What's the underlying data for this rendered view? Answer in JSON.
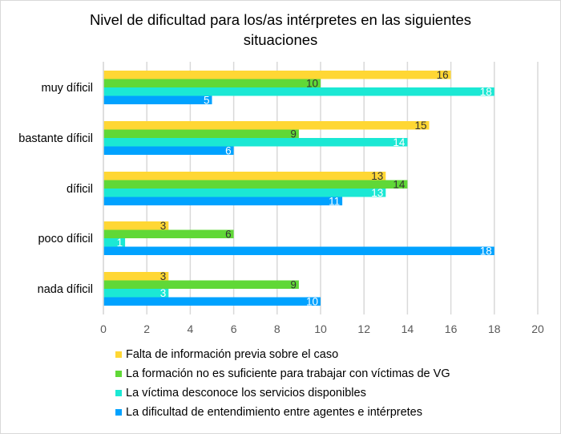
{
  "chart_data": {
    "type": "bar",
    "orientation": "horizontal",
    "title_lines": [
      "Nivel de dificultad para los/as intérpretes en las siguientes",
      "situaciones"
    ],
    "title": "Nivel de dificultad para los/as intérpretes en las siguientes situaciones",
    "categories": [
      "muy díficil",
      "bastante díficil",
      "díficil",
      "poco díficil",
      "nada díficil"
    ],
    "series": [
      {
        "name": "Falta de información previa sobre el caso",
        "color": "#FFD734",
        "label_color": "#333333",
        "values": [
          16,
          15,
          13,
          3,
          3
        ]
      },
      {
        "name": "La formación no es suficiente para trabajar  con víctimas de VG",
        "color": "#60D837",
        "label_color": "#333333",
        "values": [
          10,
          9,
          14,
          6,
          9
        ]
      },
      {
        "name": "La víctima desconoce los servicios disponibles",
        "color": "#1BE8D4",
        "label_color": "#ffffff",
        "values": [
          18,
          14,
          13,
          1,
          3
        ]
      },
      {
        "name": "La dificultad de entendimiento entre agentes e intérpretes",
        "color": "#00A2FF",
        "label_color": "#ffffff",
        "values": [
          5,
          6,
          11,
          18,
          10
        ]
      }
    ],
    "x_ticks": [
      "0",
      "2",
      "4",
      "6",
      "8",
      "10",
      "12",
      "14",
      "16",
      "18",
      "20"
    ],
    "xlim": [
      0,
      20
    ],
    "xlabel": "",
    "ylabel": "",
    "grid": true,
    "legend_position": "bottom"
  }
}
